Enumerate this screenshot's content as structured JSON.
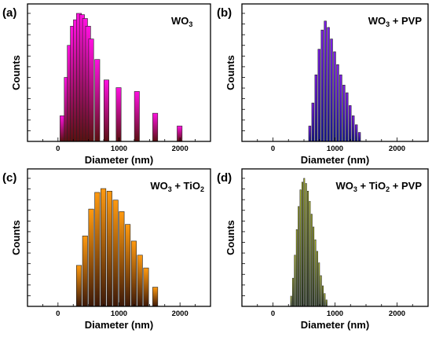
{
  "chart_data": [
    {
      "type": "bar",
      "panel": "(a)",
      "label": "WO₃",
      "label_parts": [
        "WO",
        "3",
        ""
      ],
      "xlabel": "Diameter (nm)",
      "ylabel": "Counts",
      "xticks": [
        0,
        1000,
        2000
      ],
      "xlim": [
        -500,
        2500
      ],
      "ylim": [
        0,
        100
      ],
      "bar_width": 95,
      "gradient": [
        "#ff10e0",
        "#5a1010"
      ],
      "bin_centers": [
        80,
        150,
        200,
        250,
        300,
        350,
        400,
        450,
        500,
        550,
        650,
        800,
        1000,
        1300,
        1600,
        2000
      ],
      "values": [
        20,
        50,
        75,
        90,
        95,
        100,
        99,
        96,
        90,
        80,
        64,
        48,
        42,
        39,
        22,
        12
      ]
    },
    {
      "type": "bar",
      "panel": "(b)",
      "label": "WO₃ + PVP",
      "label_parts": [
        "WO",
        "3",
        " + PVP"
      ],
      "xlabel": "Diameter (nm)",
      "ylabel": "Counts",
      "xticks": [
        0,
        1000,
        2000
      ],
      "xlim": [
        -500,
        2500
      ],
      "ylim": [
        0,
        100
      ],
      "bar_width": 48,
      "gradient": [
        "#7d1ee8",
        "#14148a"
      ],
      "bin_centers": [
        600,
        650,
        700,
        750,
        800,
        850,
        900,
        950,
        1000,
        1050,
        1100,
        1150,
        1200,
        1250,
        1300,
        1350,
        1400
      ],
      "values": [
        12,
        30,
        52,
        72,
        87,
        94,
        89,
        80,
        70,
        60,
        52,
        44,
        38,
        28,
        20,
        13,
        7
      ]
    },
    {
      "type": "bar",
      "panel": "(c)",
      "label": "WO₃ + TiO₂",
      "label_parts": [
        "WO",
        "3",
        " + TiO",
        "2",
        ""
      ],
      "xlabel": "Diameter (nm)",
      "ylabel": "Counts",
      "xticks": [
        0,
        1000,
        2000
      ],
      "xlim": [
        -500,
        2500
      ],
      "ylim": [
        0,
        100
      ],
      "bar_width": 96,
      "gradient": [
        "#ff9a10",
        "#3c1808"
      ],
      "bin_centers": [
        350,
        450,
        550,
        650,
        750,
        850,
        950,
        1050,
        1150,
        1250,
        1350,
        1450,
        1600
      ],
      "values": [
        32,
        55,
        76,
        89,
        92,
        90,
        83,
        74,
        64,
        51,
        40,
        30,
        15
      ]
    },
    {
      "type": "bar",
      "panel": "(d)",
      "label": "WO₃ + TiO₂ + PVP",
      "label_parts": [
        "WO",
        "3",
        " + TiO",
        "2",
        " + PVP"
      ],
      "xlabel": "Diameter (nm)",
      "ylabel": "Counts",
      "xticks": [
        0,
        1000,
        2000
      ],
      "xlim": [
        -500,
        2500
      ],
      "ylim": [
        0,
        100
      ],
      "bar_width": 30,
      "gradient": [
        "#c8d818",
        "#1a3410"
      ],
      "bin_centers": [
        300,
        330,
        360,
        390,
        420,
        450,
        480,
        510,
        540,
        570,
        600,
        630,
        660,
        690,
        720,
        750,
        780,
        810,
        840,
        870
      ],
      "values": [
        8,
        22,
        40,
        60,
        78,
        91,
        97,
        100,
        96,
        90,
        82,
        72,
        62,
        52,
        43,
        34,
        24,
        16,
        10,
        5
      ]
    }
  ]
}
